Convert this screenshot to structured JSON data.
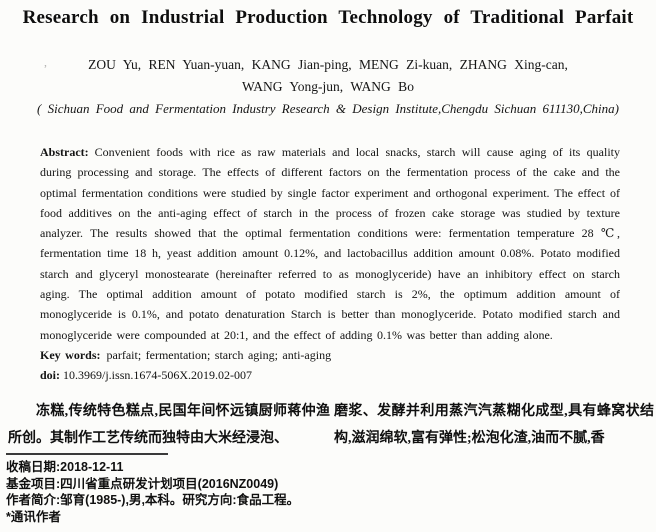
{
  "paper": {
    "title": "Research on Industrial Production Technology of Traditional Parfait",
    "authors_line1": "ZOU Yu, REN Yuan-yuan, KANG Jian-ping, MENG Zi-kuan, ZHANG Xing-can,",
    "authors_line2": "WANG Yong-jun, WANG Bo",
    "affiliation": "( Sichuan Food and Fermentation Industry Research & Design Institute,Chengdu Sichuan 611130,China)",
    "artifact_mark": ",",
    "abstract_label": "Abstract:",
    "abstract_text": "Convenient foods with rice as raw materials and local snacks, starch will cause aging of its quality during processing and storage. The effects of different factors on the fermentation process of the cake and the optimal fermentation conditions were studied by single factor experiment and orthogonal experiment. The effect of food additives on the anti-aging effect of starch in the process of frozen cake storage was studied by texture analyzer. The results showed that the optimal fermentation conditions were: fermentation temperature 28 ℃, fermentation time 18 h, yeast addition amount 0.12%, and lactobacillus addition amount 0.08%. Potato modified starch and glyceryl monostearate (hereinafter referred to as monoglyceride) have an inhibitory effect on starch aging. The optimal addition amount of potato modified starch is 2%, the optimum addition amount of monoglyceride is 0.1%, and potato denaturation Starch is better than monoglyceride. Potato modified starch and monoglyceride were compounded at 20:1, and the effect of adding 0.1% was better than adding alone.",
    "keywords_label": "Key words:",
    "keywords": "parfait; fermentation; starch aging; anti-aging",
    "doi_label": "doi:",
    "doi": "10.3969/j.issn.1674-506X.2019.02-007",
    "body": {
      "left_column": "冻糕,传统特色糕点,民国年间怀远镇厨师蒋仲渔所创。其制作工艺传统而独特由大米经浸泡、",
      "right_column": "磨浆、发酵并利用蒸汽汽蒸糊化成型,具有蜂窝状结构,滋润绵软,富有弹性;松泡化渣,油而不腻,香"
    },
    "footnotes": [
      {
        "label": "收稿日期:",
        "text": "2018-12-11"
      },
      {
        "label": "基金项目:",
        "text": "四川省重点研发计划项目(2016NZ0049)"
      },
      {
        "label": "作者简介:",
        "text": "邹育(1985-),男,本科。研究方向:食品工程。"
      },
      {
        "label": "*通讯作者",
        "text": ""
      }
    ],
    "colors": {
      "text": "#161616",
      "background": "#fcfcfa"
    }
  }
}
